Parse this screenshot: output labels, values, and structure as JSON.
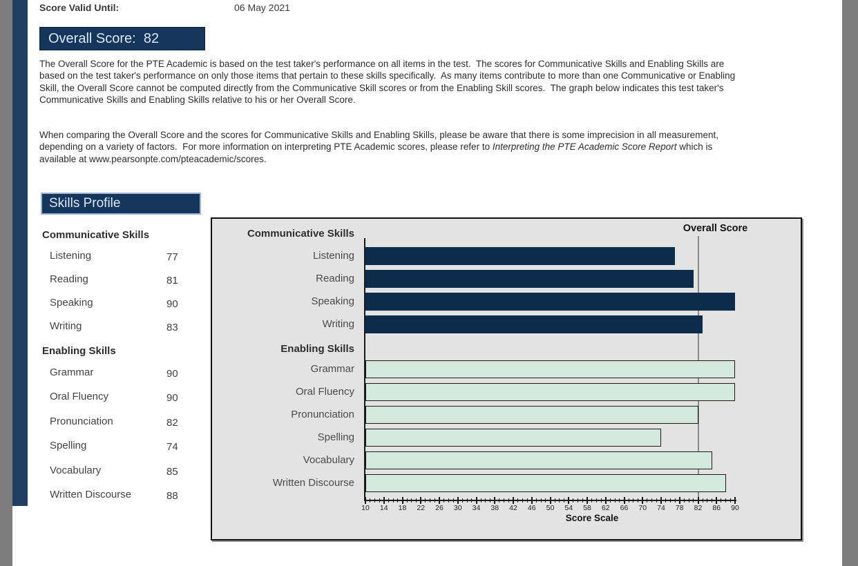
{
  "header": {
    "score_valid_label": "Score Valid Until:",
    "score_valid_value": "06 May 2021"
  },
  "overall": {
    "display": "Overall Score:  82",
    "label": "Overall Score:",
    "value": 82
  },
  "paragraphs": {
    "p1": "The Overall Score for the PTE Academic is based on the test taker's performance on all items in the test.  The scores for Communicative Skills and Enabling Skills are based on the test taker's performance on only those items that pertain to these skills specifically.  As many items contribute to more than one Communicative or Enabling Skill, the Overall Score cannot be computed directly from the Communicative Skill scores or from the Enabling Skill scores.  The graph below indicates this test taker's Communicative Skills and Enabling Skills relative to his or her Overall Score.",
    "p2_start": "When comparing the Overall Score and the scores for Communicative Skills and Enabling Skills, please be aware that there is some imprecision in all measurement, depending on a variety of factors.  For more information on interpreting PTE Academic scores, please refer to ",
    "p2_italic": "Interpreting the PTE Academic Score Report",
    "p2_end": " which is available at www.pearsonpte.com/pteacademic/scores."
  },
  "skills_profile": {
    "title": "Skills Profile",
    "groups": [
      {
        "name": "Communicative Skills",
        "items": [
          {
            "label": "Listening",
            "score": 77
          },
          {
            "label": "Reading",
            "score": 81
          },
          {
            "label": "Speaking",
            "score": 90
          },
          {
            "label": "Writing",
            "score": 83
          }
        ]
      },
      {
        "name": "Enabling Skills",
        "items": [
          {
            "label": "Grammar",
            "score": 90
          },
          {
            "label": "Oral Fluency",
            "score": 90
          },
          {
            "label": "Pronunciation",
            "score": 82
          },
          {
            "label": "Spelling",
            "score": 74
          },
          {
            "label": "Vocabulary",
            "score": 85
          },
          {
            "label": "Written Discourse",
            "score": 88
          }
        ]
      }
    ]
  },
  "chart_data": {
    "type": "bar",
    "orientation": "horizontal",
    "xlabel": "Score Scale",
    "xlim": [
      10,
      90
    ],
    "ticks": [
      10,
      14,
      18,
      22,
      26,
      30,
      34,
      38,
      42,
      46,
      50,
      54,
      58,
      62,
      66,
      70,
      74,
      78,
      82,
      86,
      90
    ],
    "grid": false,
    "plot_bg": "#e3e3e3",
    "overall_line": {
      "label": "Overall Score",
      "value": 82,
      "color": "#8a8a8a"
    },
    "groups": [
      {
        "name": "Communicative Skills",
        "bar_color": "#0d2c4c",
        "bar_border": null,
        "categories": [
          "Listening",
          "Reading",
          "Speaking",
          "Writing"
        ],
        "values": [
          77,
          81,
          90,
          83
        ]
      },
      {
        "name": "Enabling Skills",
        "bar_color": "#d4e8e0",
        "bar_border": "#1a1a1a",
        "categories": [
          "Grammar",
          "Oral Fluency",
          "Pronunciation",
          "Spelling",
          "Vocabulary",
          "Written Discourse"
        ],
        "values": [
          90,
          90,
          82,
          74,
          85,
          88
        ]
      }
    ]
  },
  "colors": {
    "navy_box": "#14365c",
    "navy_bar": "#0d2c4c",
    "mint_bar": "#d4e8e0",
    "chart_bg": "#e3e3e3",
    "viewer_gray": "#7d7d7d",
    "page_edge_band": "#203e5f"
  }
}
